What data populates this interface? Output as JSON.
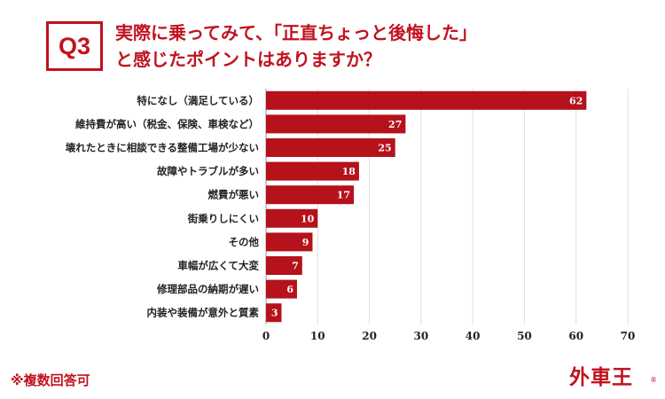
{
  "badge": "Q3",
  "title": {
    "line1": "実際に乗ってみて、「正直ちょっと後悔した」",
    "line2": "と感じたポイントはありますか？"
  },
  "note": "※複数回答可",
  "logo": "外車王",
  "logo_mark": "®",
  "colors": {
    "accent": "#c1121f",
    "bar": "#b5121b",
    "grid": "#e0e0e0"
  },
  "chart_data": {
    "type": "bar",
    "orientation": "horizontal",
    "categories": [
      "特になし（満足している）",
      "維持費が高い（税金、保険、車検など）",
      "壊れたときに相談できる整備工場が少ない",
      "故障やトラブルが多い",
      "燃費が悪い",
      "街乗りしにくい",
      "その他",
      "車幅が広くて大変",
      "修理部品の納期が遅い",
      "内装や装備が意外と質素"
    ],
    "values": [
      62,
      27,
      25,
      18,
      17,
      10,
      9,
      7,
      6,
      3
    ],
    "xlim": [
      0,
      70
    ],
    "xticks": [
      0,
      10,
      20,
      30,
      40,
      50,
      60,
      70
    ],
    "grid": true,
    "data_labels": true
  }
}
